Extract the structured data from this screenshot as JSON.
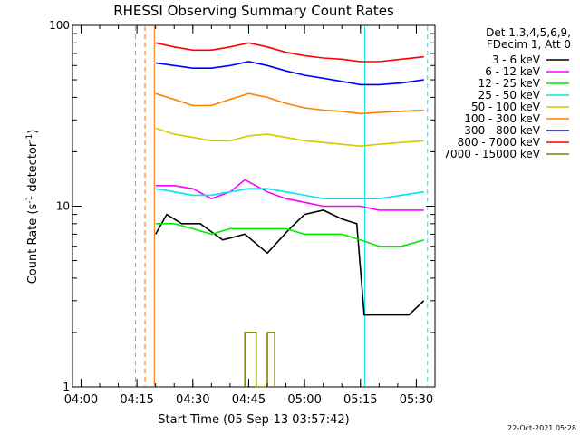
{
  "chart_data": {
    "type": "line",
    "title": "RHESSI Observing Summary Count Rates",
    "xlabel": "Start Time (05-Sep-13 03:57:42)",
    "ylabel": "Count Rate (s⁻¹ detector⁻¹)",
    "ylabel_main": "Count Rate (s",
    "ylabel_exp1": "-1",
    "ylabel_mid": " detector",
    "ylabel_exp2": "-1",
    "ylabel_end": ")",
    "y_scale": "log",
    "ylim": [
      1,
      100
    ],
    "xlim": [
      "03:57:42",
      "05:35:00"
    ],
    "x_ticks": [
      "04:00",
      "04:15",
      "04:30",
      "04:45",
      "05:00",
      "05:15",
      "05:30"
    ],
    "y_ticks": [
      "1",
      "10",
      "100"
    ],
    "legend_header": [
      "Det 1,3,4,5,6,9,",
      "FDecim 1, Att 0"
    ],
    "legend_position": "right",
    "timestamp": "22-Oct-2021 05:28",
    "markers": [
      {
        "time": "04:14:35",
        "color": "#00e5ee",
        "style": "dashed"
      },
      {
        "time": "04:17:10",
        "color": "#ff6a00",
        "style": "dashed"
      },
      {
        "time": "04:19:40",
        "color": "#ff6a00",
        "style": "solid"
      },
      {
        "time": "05:16:10",
        "color": "#00e5ee",
        "style": "solid"
      },
      {
        "time": "05:33:00",
        "color": "#00e5ee",
        "style": "dashed"
      }
    ],
    "series": [
      {
        "name": "3 - 6 keV",
        "color": "#000000",
        "points": [
          [
            "04:20",
            7
          ],
          [
            "04:23",
            9
          ],
          [
            "04:27",
            8
          ],
          [
            "04:32",
            8
          ],
          [
            "04:38",
            6.5
          ],
          [
            "04:44",
            7
          ],
          [
            "04:50",
            5.5
          ],
          [
            "04:56",
            7.5
          ],
          [
            "05:00",
            9
          ],
          [
            "05:05",
            9.5
          ],
          [
            "05:10",
            8.5
          ],
          [
            "05:14",
            8
          ],
          [
            "05:16",
            2.5
          ],
          [
            "05:22",
            2.5
          ],
          [
            "05:28",
            2.5
          ],
          [
            "05:32",
            3
          ]
        ]
      },
      {
        "name": "6 - 12 keV",
        "color": "#ff00ff",
        "points": [
          [
            "04:20",
            13
          ],
          [
            "04:25",
            13
          ],
          [
            "04:30",
            12.5
          ],
          [
            "04:35",
            11
          ],
          [
            "04:40",
            12
          ],
          [
            "04:44",
            14
          ],
          [
            "04:50",
            12
          ],
          [
            "04:55",
            11
          ],
          [
            "05:00",
            10.5
          ],
          [
            "05:05",
            10
          ],
          [
            "05:10",
            10
          ],
          [
            "05:15",
            10
          ],
          [
            "05:20",
            9.5
          ],
          [
            "05:26",
            9.5
          ],
          [
            "05:32",
            9.5
          ]
        ]
      },
      {
        "name": "12 - 25 keV",
        "color": "#00ee00",
        "points": [
          [
            "04:20",
            8
          ],
          [
            "04:25",
            8
          ],
          [
            "04:30",
            7.5
          ],
          [
            "04:35",
            7
          ],
          [
            "04:40",
            7.5
          ],
          [
            "04:45",
            7.5
          ],
          [
            "04:50",
            7.5
          ],
          [
            "04:55",
            7.5
          ],
          [
            "05:00",
            7
          ],
          [
            "05:05",
            7
          ],
          [
            "05:10",
            7
          ],
          [
            "05:15",
            6.5
          ],
          [
            "05:20",
            6
          ],
          [
            "05:26",
            6
          ],
          [
            "05:32",
            6.5
          ]
        ]
      },
      {
        "name": "25 - 50 keV",
        "color": "#00e5ee",
        "points": [
          [
            "04:20",
            12.5
          ],
          [
            "04:25",
            12
          ],
          [
            "04:30",
            11.5
          ],
          [
            "04:35",
            11.5
          ],
          [
            "04:40",
            12
          ],
          [
            "04:45",
            12.5
          ],
          [
            "04:50",
            12.5
          ],
          [
            "04:55",
            12
          ],
          [
            "05:00",
            11.5
          ],
          [
            "05:05",
            11
          ],
          [
            "05:10",
            11
          ],
          [
            "05:15",
            11
          ],
          [
            "05:20",
            11
          ],
          [
            "05:26",
            11.5
          ],
          [
            "05:32",
            12
          ]
        ]
      },
      {
        "name": "50 - 100 keV",
        "color": "#cccc00",
        "points": [
          [
            "04:20",
            27
          ],
          [
            "04:25",
            25
          ],
          [
            "04:30",
            24
          ],
          [
            "04:35",
            23
          ],
          [
            "04:40",
            23
          ],
          [
            "04:45",
            24.5
          ],
          [
            "04:50",
            25
          ],
          [
            "04:55",
            24
          ],
          [
            "05:00",
            23
          ],
          [
            "05:05",
            22.5
          ],
          [
            "05:10",
            22
          ],
          [
            "05:15",
            21.5
          ],
          [
            "05:20",
            22
          ],
          [
            "05:26",
            22.5
          ],
          [
            "05:32",
            23
          ]
        ]
      },
      {
        "name": "100 - 300 keV",
        "color": "#ff7f00",
        "points": [
          [
            "04:20",
            42
          ],
          [
            "04:25",
            39
          ],
          [
            "04:30",
            36
          ],
          [
            "04:35",
            36
          ],
          [
            "04:40",
            39
          ],
          [
            "04:45",
            42
          ],
          [
            "04:50",
            40
          ],
          [
            "04:55",
            37
          ],
          [
            "05:00",
            35
          ],
          [
            "05:05",
            34
          ],
          [
            "05:10",
            33.5
          ],
          [
            "05:15",
            32.5
          ],
          [
            "05:20",
            33
          ],
          [
            "05:26",
            33.5
          ],
          [
            "05:32",
            34
          ]
        ]
      },
      {
        "name": "300 - 800 keV",
        "color": "#0000ff",
        "points": [
          [
            "04:20",
            62
          ],
          [
            "04:25",
            60
          ],
          [
            "04:30",
            58
          ],
          [
            "04:35",
            58
          ],
          [
            "04:40",
            60
          ],
          [
            "04:45",
            63
          ],
          [
            "04:50",
            60
          ],
          [
            "04:55",
            56
          ],
          [
            "05:00",
            53
          ],
          [
            "05:05",
            51
          ],
          [
            "05:10",
            49
          ],
          [
            "05:15",
            47
          ],
          [
            "05:20",
            47
          ],
          [
            "05:26",
            48
          ],
          [
            "05:32",
            50
          ]
        ]
      },
      {
        "name": "800 - 7000 keV",
        "color": "#ff0000",
        "points": [
          [
            "04:20",
            80
          ],
          [
            "04:25",
            76
          ],
          [
            "04:30",
            73
          ],
          [
            "04:35",
            73
          ],
          [
            "04:40",
            76
          ],
          [
            "04:45",
            80
          ],
          [
            "04:50",
            76
          ],
          [
            "04:55",
            71
          ],
          [
            "05:00",
            68
          ],
          [
            "05:05",
            66
          ],
          [
            "05:10",
            65
          ],
          [
            "05:15",
            63
          ],
          [
            "05:20",
            63
          ],
          [
            "05:26",
            65
          ],
          [
            "05:32",
            67
          ]
        ]
      },
      {
        "name": "7000 - 15000 keV",
        "color": "#808000",
        "points": [
          [
            "04:44",
            1.0
          ],
          [
            "04:44",
            2.0
          ],
          [
            "04:47",
            2.0
          ],
          [
            "04:47",
            1.0
          ],
          [
            "04:50",
            1.0
          ],
          [
            "04:50",
            2.0
          ],
          [
            "04:52",
            2.0
          ],
          [
            "04:52",
            1.0
          ]
        ]
      }
    ]
  }
}
